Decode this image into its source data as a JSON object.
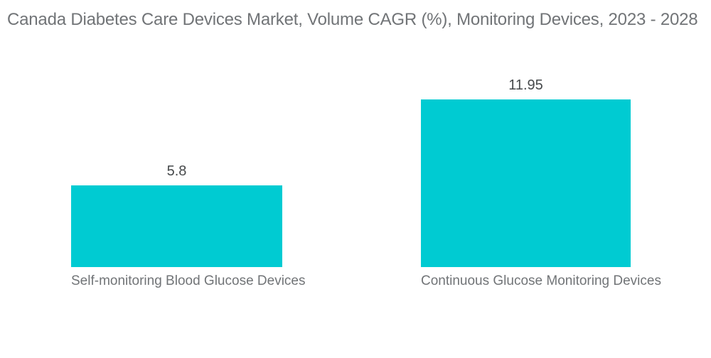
{
  "chart_data": {
    "type": "bar",
    "title": "Canada Diabetes Care Devices Market, Volume CAGR (%), Monitoring Devices, 2023 - 2028",
    "categories": [
      "Self-monitoring Blood Glucose Devices",
      "Continuous Glucose Monitoring Devices"
    ],
    "values": [
      5.8,
      11.95
    ],
    "value_labels": [
      "5.8",
      "11.95"
    ],
    "xlabel": "",
    "ylabel": "",
    "ylim": [
      0,
      12
    ],
    "grid": false,
    "legend": "none",
    "bar_color": "#00cbd2",
    "title_color": "#717477",
    "category_label_color": "#717477",
    "value_label_color": "#46494b",
    "background_color": "#ffffff"
  }
}
